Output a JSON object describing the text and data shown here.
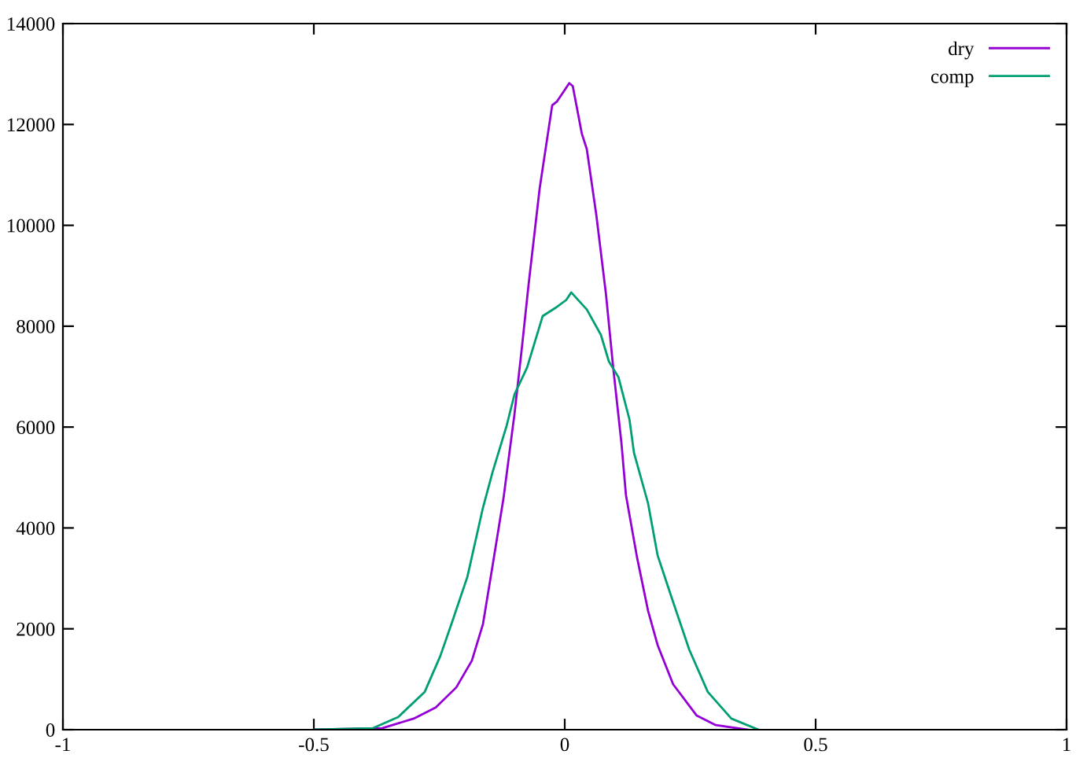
{
  "chart_data": {
    "type": "line",
    "xlim": [
      -1,
      1
    ],
    "ylim": [
      0,
      14000
    ],
    "xticks": [
      -1,
      -0.5,
      0,
      0.5,
      1
    ],
    "yticks": [
      0,
      2000,
      4000,
      6000,
      8000,
      10000,
      12000,
      14000
    ],
    "grid": false,
    "legend": "top right",
    "marker": "none",
    "line_style": "solid",
    "series": [
      {
        "name": "dry",
        "color": "#9400d3",
        "x": [
          -0.498,
          -0.364,
          -0.301,
          -0.257,
          -0.216,
          -0.185,
          -0.163,
          -0.144,
          -0.122,
          -0.1,
          -0.085,
          -0.072,
          -0.05,
          -0.025,
          -0.016,
          -0.003,
          0.009,
          0.016,
          0.034,
          0.044,
          0.063,
          0.082,
          0.097,
          0.113,
          0.122,
          0.144,
          0.166,
          0.185,
          0.216,
          0.263,
          0.301,
          0.364
        ],
        "values": [
          0,
          30,
          220,
          440,
          840,
          1370,
          2090,
          3240,
          4590,
          6270,
          7610,
          8830,
          10730,
          12380,
          12450,
          12640,
          12820,
          12760,
          11820,
          11510,
          10200,
          8650,
          7140,
          5680,
          4650,
          3420,
          2360,
          1680,
          900,
          280,
          90,
          0
        ]
      },
      {
        "name": "comp",
        "color": "#009e73",
        "x": [
          -0.498,
          -0.382,
          -0.332,
          -0.279,
          -0.248,
          -0.226,
          -0.194,
          -0.163,
          -0.144,
          -0.116,
          -0.1,
          -0.075,
          -0.044,
          -0.019,
          0.003,
          0.013,
          0.044,
          0.072,
          0.088,
          0.107,
          0.129,
          0.138,
          0.166,
          0.185,
          0.213,
          0.248,
          0.285,
          0.332,
          0.386
        ],
        "values": [
          0,
          30,
          250,
          750,
          1460,
          2090,
          3030,
          4400,
          5100,
          6020,
          6650,
          7180,
          8200,
          8360,
          8520,
          8670,
          8330,
          7830,
          7300,
          6990,
          6150,
          5490,
          4490,
          3460,
          2620,
          1590,
          750,
          220,
          0
        ]
      }
    ]
  }
}
